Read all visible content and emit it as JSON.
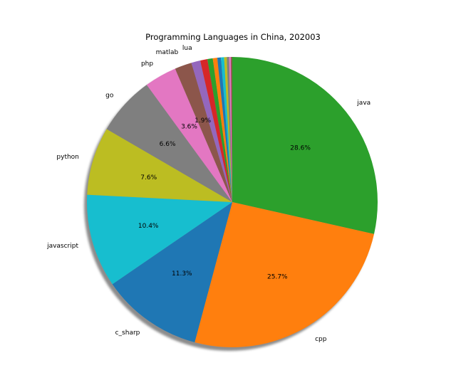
{
  "chart_data": {
    "type": "pie",
    "title": "Programming Languages in China, 202003",
    "start_angle_deg": 90,
    "direction": "clockwise",
    "shadow": true,
    "pct_label_min": 1.5,
    "slices": [
      {
        "label": "java",
        "value": 28.6,
        "pct_label": "28.6%",
        "color": "#2ca02c"
      },
      {
        "label": "cpp",
        "value": 25.7,
        "pct_label": "25.7%",
        "color": "#ff7f0e"
      },
      {
        "label": "c_sharp",
        "value": 11.3,
        "pct_label": "11.3%",
        "color": "#1f77b4"
      },
      {
        "label": "javascript",
        "value": 10.4,
        "pct_label": "10.4%",
        "color": "#17becf"
      },
      {
        "label": "python",
        "value": 7.6,
        "pct_label": "7.6%",
        "color": "#bcbd22"
      },
      {
        "label": "go",
        "value": 6.6,
        "pct_label": "6.6%",
        "color": "#7f7f7f"
      },
      {
        "label": "php",
        "value": 3.6,
        "pct_label": "3.6%",
        "color": "#e377c2"
      },
      {
        "label": "matlab",
        "value": 1.9,
        "pct_label": "1.9%",
        "color": "#8c564b"
      },
      {
        "label": "lua",
        "value": 1.0,
        "pct_label": "",
        "color": "#9467bd"
      },
      {
        "label": "",
        "value": 0.8,
        "pct_label": "",
        "color": "#d62728"
      },
      {
        "label": "",
        "value": 0.6,
        "pct_label": "",
        "color": "#2ca02c"
      },
      {
        "label": "",
        "value": 0.5,
        "pct_label": "",
        "color": "#ff7f0e"
      },
      {
        "label": "",
        "value": 0.4,
        "pct_label": "",
        "color": "#1f77b4"
      },
      {
        "label": "",
        "value": 0.35,
        "pct_label": "",
        "color": "#17becf"
      },
      {
        "label": "",
        "value": 0.3,
        "pct_label": "",
        "color": "#bcbd22"
      },
      {
        "label": "",
        "value": 0.25,
        "pct_label": "",
        "color": "#7f7f7f"
      },
      {
        "label": "",
        "value": 0.2,
        "pct_label": "",
        "color": "#e377c2"
      },
      {
        "label": "",
        "value": 0.15,
        "pct_label": "",
        "color": "#8c564b"
      }
    ]
  }
}
